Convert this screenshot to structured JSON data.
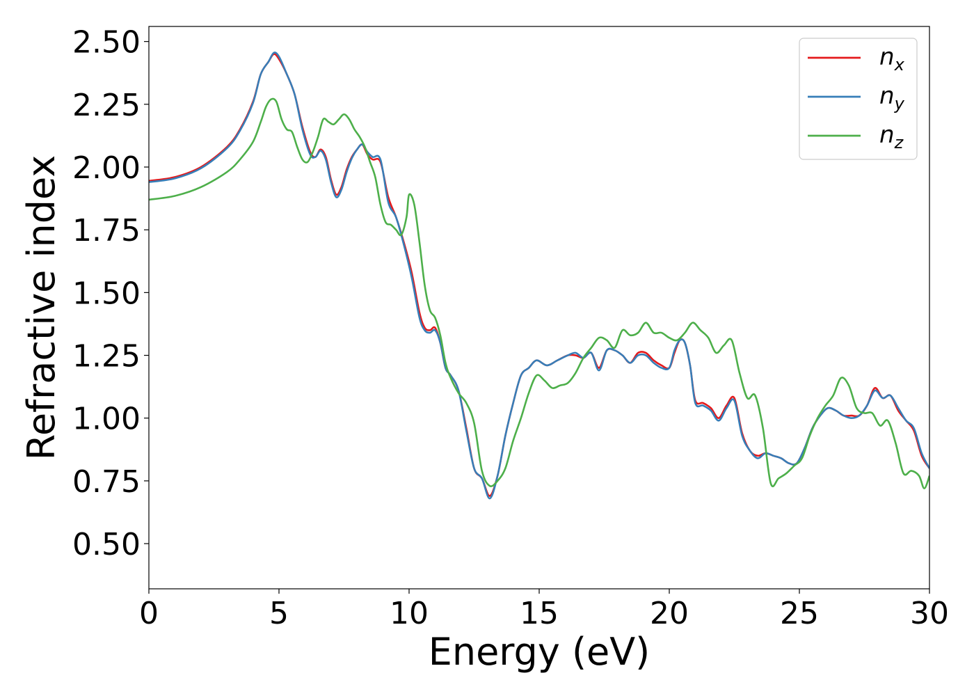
{
  "chart_data": {
    "type": "line",
    "xlabel": "Energy (eV)",
    "ylabel": "Refractive index",
    "xlim": [
      0,
      30
    ],
    "ylim": [
      0.32,
      2.56
    ],
    "xticks": [
      0,
      5,
      10,
      15,
      20,
      25,
      30
    ],
    "xtick_labels": [
      "0",
      "5",
      "10",
      "15",
      "20",
      "25",
      "30"
    ],
    "yticks": [
      0.5,
      0.75,
      1.0,
      1.25,
      1.5,
      1.75,
      2.0,
      2.25,
      2.5
    ],
    "ytick_labels": [
      "0.50",
      "0.75",
      "1.00",
      "1.25",
      "1.50",
      "1.75",
      "2.00",
      "2.25",
      "2.50"
    ],
    "grid": false,
    "legend_position": "top-right",
    "series": [
      {
        "name": "n_x",
        "legend_base": "n",
        "legend_sub": "x",
        "color": "#e41a1c",
        "x": [
          0,
          1,
          2,
          3,
          3.5,
          4,
          4.3,
          4.6,
          4.8,
          5.0,
          5.3,
          5.6,
          5.9,
          6.2,
          6.4,
          6.6,
          6.8,
          7.0,
          7.2,
          7.4,
          7.6,
          7.8,
          8.0,
          8.2,
          8.4,
          8.6,
          8.9,
          9.2,
          9.5,
          9.8,
          10.1,
          10.4,
          10.6,
          10.8,
          11.0,
          11.2,
          11.4,
          11.6,
          11.9,
          12.2,
          12.5,
          12.8,
          13.1,
          13.4,
          13.7,
          14.0,
          14.3,
          14.6,
          14.9,
          15.3,
          15.7,
          16.1,
          16.4,
          16.7,
          17.0,
          17.3,
          17.6,
          17.9,
          18.2,
          18.5,
          18.8,
          19.1,
          19.4,
          19.7,
          20.0,
          20.2,
          20.4,
          20.6,
          20.8,
          21.0,
          21.3,
          21.6,
          21.9,
          22.2,
          22.5,
          22.8,
          23.1,
          23.4,
          23.7,
          24.0,
          24.3,
          24.6,
          24.9,
          25.2,
          25.5,
          25.8,
          26.1,
          26.4,
          26.7,
          27.0,
          27.3,
          27.6,
          27.9,
          28.2,
          28.5,
          28.8,
          29.1,
          29.4,
          29.7,
          30.0
        ],
        "values": [
          1.945,
          1.96,
          2.0,
          2.08,
          2.15,
          2.26,
          2.37,
          2.42,
          2.45,
          2.43,
          2.37,
          2.29,
          2.16,
          2.06,
          2.04,
          2.07,
          2.04,
          1.95,
          1.89,
          1.92,
          1.99,
          2.04,
          2.07,
          2.09,
          2.05,
          2.03,
          2.02,
          1.88,
          1.8,
          1.7,
          1.58,
          1.42,
          1.36,
          1.35,
          1.36,
          1.3,
          1.2,
          1.17,
          1.11,
          0.96,
          0.8,
          0.76,
          0.69,
          0.77,
          0.93,
          1.06,
          1.17,
          1.2,
          1.23,
          1.21,
          1.23,
          1.25,
          1.25,
          1.24,
          1.26,
          1.2,
          1.27,
          1.27,
          1.25,
          1.22,
          1.26,
          1.26,
          1.23,
          1.21,
          1.2,
          1.26,
          1.31,
          1.3,
          1.21,
          1.07,
          1.06,
          1.04,
          1.0,
          1.05,
          1.08,
          0.94,
          0.87,
          0.85,
          0.86,
          0.85,
          0.84,
          0.82,
          0.82,
          0.88,
          0.96,
          1.01,
          1.04,
          1.03,
          1.01,
          1.01,
          1.01,
          1.05,
          1.12,
          1.08,
          1.09,
          1.03,
          0.99,
          0.95,
          0.85,
          0.8
        ]
      },
      {
        "name": "n_y",
        "legend_base": "n",
        "legend_sub": "y",
        "color": "#377eb8",
        "x": [
          0,
          1,
          2,
          3,
          3.5,
          4,
          4.3,
          4.6,
          4.8,
          5.0,
          5.3,
          5.6,
          5.9,
          6.2,
          6.4,
          6.6,
          6.8,
          7.0,
          7.2,
          7.4,
          7.6,
          7.8,
          8.0,
          8.2,
          8.4,
          8.6,
          8.9,
          9.2,
          9.5,
          9.8,
          10.1,
          10.4,
          10.6,
          10.8,
          11.0,
          11.2,
          11.4,
          11.6,
          11.9,
          12.2,
          12.5,
          12.8,
          13.1,
          13.4,
          13.7,
          14.0,
          14.3,
          14.6,
          14.9,
          15.3,
          15.7,
          16.1,
          16.4,
          16.7,
          17.0,
          17.3,
          17.6,
          17.9,
          18.2,
          18.5,
          18.8,
          19.1,
          19.4,
          19.7,
          20.0,
          20.2,
          20.4,
          20.6,
          20.8,
          21.0,
          21.3,
          21.6,
          21.9,
          22.2,
          22.5,
          22.8,
          23.1,
          23.4,
          23.7,
          24.0,
          24.3,
          24.6,
          24.9,
          25.2,
          25.5,
          25.8,
          26.1,
          26.4,
          26.7,
          27.0,
          27.3,
          27.6,
          27.9,
          28.2,
          28.5,
          28.8,
          29.1,
          29.4,
          29.7,
          30.0
        ],
        "values": [
          1.94,
          1.955,
          1.995,
          2.075,
          2.145,
          2.255,
          2.37,
          2.42,
          2.455,
          2.44,
          2.37,
          2.29,
          2.15,
          2.05,
          2.04,
          2.065,
          2.03,
          1.94,
          1.88,
          1.91,
          1.98,
          2.035,
          2.07,
          2.09,
          2.06,
          2.04,
          2.03,
          1.86,
          1.8,
          1.69,
          1.56,
          1.4,
          1.35,
          1.34,
          1.35,
          1.3,
          1.2,
          1.17,
          1.11,
          0.95,
          0.8,
          0.76,
          0.68,
          0.77,
          0.93,
          1.06,
          1.17,
          1.2,
          1.23,
          1.21,
          1.23,
          1.25,
          1.26,
          1.24,
          1.26,
          1.19,
          1.27,
          1.27,
          1.25,
          1.22,
          1.25,
          1.25,
          1.22,
          1.2,
          1.2,
          1.27,
          1.31,
          1.3,
          1.21,
          1.06,
          1.05,
          1.03,
          0.99,
          1.04,
          1.07,
          0.93,
          0.87,
          0.84,
          0.86,
          0.85,
          0.84,
          0.82,
          0.82,
          0.88,
          0.96,
          1.01,
          1.04,
          1.03,
          1.01,
          1.0,
          1.01,
          1.05,
          1.11,
          1.08,
          1.09,
          1.04,
          0.99,
          0.96,
          0.86,
          0.8
        ]
      },
      {
        "name": "n_z",
        "legend_base": "n",
        "legend_sub": "z",
        "color": "#4daf4a",
        "x": [
          0,
          1,
          2,
          3,
          3.5,
          4,
          4.3,
          4.5,
          4.7,
          4.9,
          5.1,
          5.3,
          5.5,
          5.7,
          5.9,
          6.1,
          6.3,
          6.5,
          6.7,
          6.9,
          7.1,
          7.3,
          7.5,
          7.7,
          7.9,
          8.1,
          8.3,
          8.5,
          8.7,
          8.9,
          9.1,
          9.3,
          9.5,
          9.7,
          9.9,
          10.0,
          10.2,
          10.4,
          10.6,
          10.8,
          11.0,
          11.2,
          11.4,
          11.6,
          11.9,
          12.2,
          12.5,
          12.8,
          13.1,
          13.4,
          13.7,
          14.0,
          14.3,
          14.6,
          14.9,
          15.2,
          15.5,
          15.8,
          16.1,
          16.4,
          16.7,
          17.0,
          17.3,
          17.6,
          17.9,
          18.2,
          18.5,
          18.8,
          19.1,
          19.4,
          19.7,
          20.0,
          20.3,
          20.6,
          20.9,
          21.2,
          21.5,
          21.8,
          22.1,
          22.4,
          22.7,
          23.0,
          23.3,
          23.6,
          23.9,
          24.2,
          24.5,
          24.8,
          25.1,
          25.4,
          25.7,
          26.0,
          26.3,
          26.6,
          26.9,
          27.2,
          27.5,
          27.8,
          28.1,
          28.4,
          28.7,
          29.0,
          29.3,
          29.6,
          29.8,
          30.0
        ],
        "values": [
          1.87,
          1.885,
          1.92,
          1.98,
          2.03,
          2.1,
          2.18,
          2.24,
          2.27,
          2.26,
          2.19,
          2.15,
          2.14,
          2.08,
          2.03,
          2.02,
          2.06,
          2.12,
          2.19,
          2.18,
          2.17,
          2.19,
          2.21,
          2.19,
          2.15,
          2.12,
          2.08,
          2.02,
          1.96,
          1.85,
          1.78,
          1.77,
          1.75,
          1.73,
          1.8,
          1.89,
          1.85,
          1.7,
          1.53,
          1.43,
          1.4,
          1.33,
          1.22,
          1.16,
          1.1,
          1.06,
          0.98,
          0.79,
          0.73,
          0.75,
          0.8,
          0.91,
          1.0,
          1.1,
          1.17,
          1.15,
          1.12,
          1.13,
          1.14,
          1.18,
          1.24,
          1.28,
          1.32,
          1.31,
          1.28,
          1.35,
          1.33,
          1.34,
          1.38,
          1.34,
          1.34,
          1.32,
          1.31,
          1.34,
          1.38,
          1.35,
          1.32,
          1.26,
          1.29,
          1.31,
          1.18,
          1.08,
          1.09,
          0.96,
          0.74,
          0.76,
          0.78,
          0.81,
          0.84,
          0.93,
          1.0,
          1.05,
          1.09,
          1.16,
          1.13,
          1.04,
          1.02,
          1.02,
          0.97,
          0.99,
          0.9,
          0.78,
          0.79,
          0.77,
          0.72,
          0.77
        ]
      }
    ]
  }
}
